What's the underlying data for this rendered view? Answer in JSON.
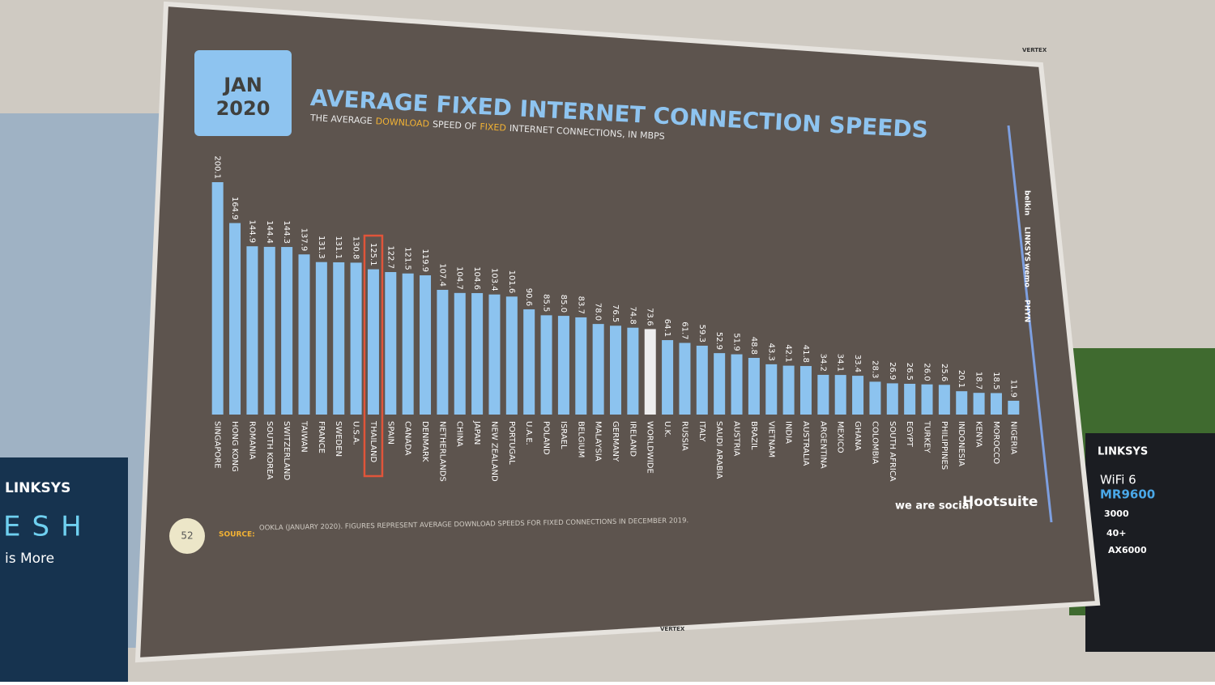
{
  "chart_data": {
    "type": "bar",
    "date_badge": [
      "JAN",
      "2020"
    ],
    "title": "AVERAGE FIXED INTERNET CONNECTION SPEEDS",
    "subtitle": [
      "THE AVERAGE",
      "DOWNLOAD",
      "SPEED OF",
      "FIXED",
      "INTERNET CONNECTIONS, IN MBPS"
    ],
    "categories": [
      "SINGAPORE",
      "HONG KONG",
      "ROMANIA",
      "SOUTH KOREA",
      "SWITZERLAND",
      "TAIWAN",
      "FRANCE",
      "SWEDEN",
      "U.S.A.",
      "THAILAND",
      "SPAIN",
      "CANADA",
      "DENMARK",
      "NETHERLANDS",
      "CHINA",
      "JAPAN",
      "NEW ZEALAND",
      "PORTUGAL",
      "U.A.E.",
      "POLAND",
      "ISRAEL",
      "BELGIUM",
      "MALAYSIA",
      "GERMANY",
      "IRELAND",
      "WORLDWIDE",
      "U.K.",
      "RUSSIA",
      "ITALY",
      "SAUDI ARABIA",
      "AUSTRIA",
      "BRAZIL",
      "VIETNAM",
      "INDIA",
      "AUSTRALIA",
      "ARGENTINA",
      "MEXICO",
      "GHANA",
      "COLOMBIA",
      "SOUTH AFRICA",
      "EGYPT",
      "TURKEY",
      "PHILIPPINES",
      "INDONESIA",
      "KENYA",
      "MOROCCO",
      "NIGERIA"
    ],
    "values": [
      200.1,
      164.9,
      144.9,
      144.4,
      144.3,
      137.9,
      131.3,
      131.1,
      130.8,
      125.1,
      122.7,
      121.5,
      119.9,
      107.4,
      104.7,
      104.6,
      103.4,
      101.6,
      90.6,
      85.5,
      85.0,
      83.7,
      78.0,
      76.5,
      74.8,
      73.6,
      64.1,
      61.7,
      59.3,
      52.9,
      51.9,
      48.8,
      43.3,
      42.1,
      41.8,
      34.2,
      34.1,
      33.4,
      28.3,
      26.9,
      26.5,
      26.0,
      25.6,
      20.1,
      18.7,
      18.5,
      11.9
    ],
    "value_labels": [
      "200.1",
      "164.9",
      "144.9",
      "144.4",
      "144.3",
      "137.9",
      "131.3",
      "131.1",
      "130.8",
      "125.1",
      "122.7",
      "121.5",
      "119.9",
      "107.4",
      "104.7",
      "104.6",
      "103.4",
      "101.6",
      "90.6",
      "85.5",
      "85.0",
      "83.7",
      "78.0",
      "76.5",
      "74.8",
      "73.6",
      "64.1",
      "61.7",
      "59.3",
      "52.9",
      "51.9",
      "48.8",
      "43.3",
      "42.1",
      "41.8",
      "34.2",
      "34.1",
      "33.4",
      "28.3",
      "26.9",
      "26.5",
      "26.0",
      "25.6",
      "20.1",
      "18.7",
      "18.5",
      "11.9"
    ],
    "color": "#8cc3ef",
    "reference": "WORLDWIDE",
    "reference_color": "#eeeeee",
    "highlight": "THAILAND",
    "highlight_color": "#e0553a",
    "page_number": "52",
    "source_label": "SOURCE:",
    "source": "OOKLA (JANUARY 2020). FIGURES REPRESENT AVERAGE DOWNLOAD SPEEDS FOR FIXED CONNECTIONS IN DECEMBER 2019.",
    "logos": [
      "we are social",
      "Hootsuite"
    ],
    "sponsors": [
      "belkin",
      "LINKSYS",
      "wemo",
      "PHYN"
    ]
  },
  "scene": {
    "screen_brand": "VERTEX",
    "left_banner": [
      "LINKSYS",
      "ESH",
      "is More"
    ],
    "right_banner": [
      "LINKSYS",
      "WiFi 6",
      "MR9600",
      "3000",
      "40+",
      "AX6000"
    ]
  }
}
